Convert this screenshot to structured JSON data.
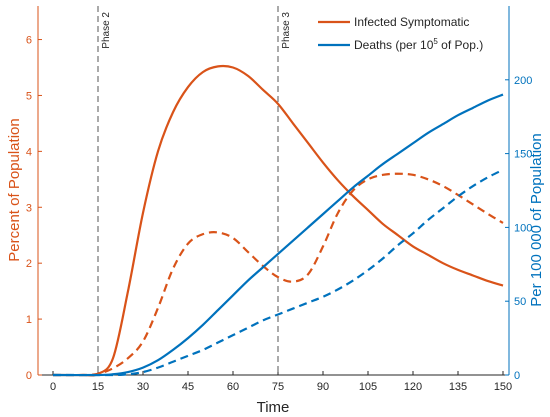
{
  "chart_data": {
    "type": "line",
    "xlabel": "Time",
    "ylabel_left": "Percent of Population",
    "ylabel_right": "Per 100 000 of Population",
    "xlim": [
      -5,
      152
    ],
    "ylim_left": [
      0,
      6.6
    ],
    "ylim_right": [
      0,
      250
    ],
    "x_ticks": [
      0,
      15,
      30,
      45,
      60,
      75,
      90,
      105,
      120,
      135,
      150
    ],
    "y_left_ticks": [
      0,
      1,
      2,
      3,
      4,
      5,
      6
    ],
    "y_right_ticks": [
      0,
      50,
      100,
      150,
      200
    ],
    "grid": false,
    "legend_position": "top-right",
    "colors": {
      "orange": "#d95319",
      "blue": "#0072bd",
      "axis": "#262626"
    },
    "phase_lines": [
      {
        "x": 15,
        "label": "Phase 2"
      },
      {
        "x": 75,
        "label": "Phase 3"
      }
    ],
    "legend": [
      {
        "label_text": "Infected Symptomatic",
        "color": "#d95319"
      },
      {
        "label_pre": "Deaths (per 10",
        "label_sup": "5",
        "label_post": " of Pop.)",
        "color": "#0072bd"
      }
    ],
    "series": [
      {
        "axis": "left",
        "color": "#d95319",
        "style": "solid",
        "points": [
          [
            0,
            0
          ],
          [
            10,
            0
          ],
          [
            15,
            0.02
          ],
          [
            20,
            0.3
          ],
          [
            25,
            1.5
          ],
          [
            30,
            2.9
          ],
          [
            35,
            4.0
          ],
          [
            40,
            4.7
          ],
          [
            45,
            5.15
          ],
          [
            50,
            5.42
          ],
          [
            55,
            5.52
          ],
          [
            60,
            5.5
          ],
          [
            65,
            5.35
          ],
          [
            70,
            5.1
          ],
          [
            75,
            4.85
          ],
          [
            80,
            4.5
          ],
          [
            85,
            4.15
          ],
          [
            90,
            3.8
          ],
          [
            95,
            3.48
          ],
          [
            100,
            3.2
          ],
          [
            105,
            2.95
          ],
          [
            110,
            2.7
          ],
          [
            115,
            2.5
          ],
          [
            120,
            2.3
          ],
          [
            125,
            2.15
          ],
          [
            130,
            2.0
          ],
          [
            135,
            1.88
          ],
          [
            140,
            1.78
          ],
          [
            145,
            1.68
          ],
          [
            150,
            1.6
          ]
        ]
      },
      {
        "axis": "left",
        "color": "#d95319",
        "style": "dashed",
        "points": [
          [
            0,
            0
          ],
          [
            10,
            0
          ],
          [
            15,
            0.02
          ],
          [
            20,
            0.12
          ],
          [
            25,
            0.3
          ],
          [
            30,
            0.6
          ],
          [
            35,
            1.2
          ],
          [
            40,
            1.9
          ],
          [
            45,
            2.35
          ],
          [
            50,
            2.52
          ],
          [
            55,
            2.55
          ],
          [
            60,
            2.45
          ],
          [
            65,
            2.2
          ],
          [
            70,
            1.95
          ],
          [
            75,
            1.75
          ],
          [
            80,
            1.67
          ],
          [
            85,
            1.8
          ],
          [
            90,
            2.3
          ],
          [
            95,
            2.9
          ],
          [
            100,
            3.3
          ],
          [
            105,
            3.5
          ],
          [
            110,
            3.58
          ],
          [
            115,
            3.6
          ],
          [
            120,
            3.58
          ],
          [
            125,
            3.5
          ],
          [
            130,
            3.38
          ],
          [
            135,
            3.22
          ],
          [
            140,
            3.05
          ],
          [
            145,
            2.88
          ],
          [
            150,
            2.72
          ]
        ]
      },
      {
        "axis": "right",
        "color": "#0072bd",
        "style": "solid",
        "points": [
          [
            0,
            0
          ],
          [
            15,
            0
          ],
          [
            20,
            0.5
          ],
          [
            25,
            2
          ],
          [
            30,
            5
          ],
          [
            35,
            10
          ],
          [
            40,
            17
          ],
          [
            45,
            25
          ],
          [
            50,
            34
          ],
          [
            55,
            44
          ],
          [
            60,
            54
          ],
          [
            65,
            64
          ],
          [
            70,
            73
          ],
          [
            75,
            82
          ],
          [
            80,
            91
          ],
          [
            85,
            100
          ],
          [
            90,
            109
          ],
          [
            95,
            118
          ],
          [
            100,
            127
          ],
          [
            105,
            135
          ],
          [
            110,
            143
          ],
          [
            115,
            150
          ],
          [
            120,
            157
          ],
          [
            125,
            164
          ],
          [
            130,
            170
          ],
          [
            135,
            176
          ],
          [
            140,
            181
          ],
          [
            145,
            186
          ],
          [
            150,
            190
          ]
        ]
      },
      {
        "axis": "right",
        "color": "#0072bd",
        "style": "dashed",
        "points": [
          [
            0,
            0
          ],
          [
            20,
            0
          ],
          [
            25,
            0.5
          ],
          [
            30,
            2
          ],
          [
            35,
            5
          ],
          [
            40,
            9
          ],
          [
            45,
            13
          ],
          [
            50,
            17
          ],
          [
            55,
            22
          ],
          [
            60,
            27
          ],
          [
            65,
            32
          ],
          [
            70,
            37
          ],
          [
            75,
            41
          ],
          [
            80,
            45
          ],
          [
            85,
            49
          ],
          [
            90,
            53
          ],
          [
            95,
            58
          ],
          [
            100,
            64
          ],
          [
            105,
            71
          ],
          [
            110,
            79
          ],
          [
            115,
            88
          ],
          [
            120,
            96
          ],
          [
            125,
            105
          ],
          [
            130,
            113
          ],
          [
            135,
            121
          ],
          [
            140,
            128
          ],
          [
            145,
            134
          ],
          [
            150,
            139
          ]
        ]
      }
    ]
  }
}
